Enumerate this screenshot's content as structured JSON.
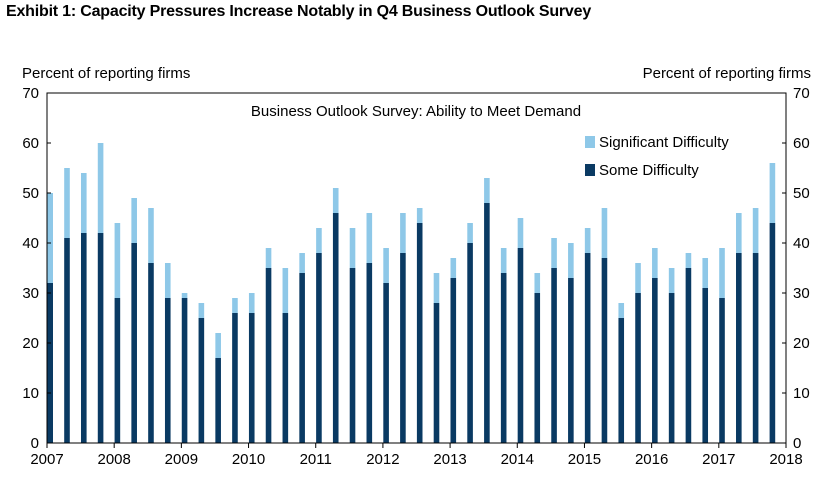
{
  "exhibit_title": "Exhibit 1: Capacity Pressures Increase Notably in Q4 Business Outlook Survey",
  "chart_data": {
    "type": "bar",
    "stacked": true,
    "title": "Business Outlook Survey: Ability to Meet Demand",
    "ylabel_left": "Percent of reporting firms",
    "ylabel_right": "Percent of reporting firms",
    "ylim": [
      0,
      70
    ],
    "yticks": [
      0,
      10,
      20,
      30,
      40,
      50,
      60,
      70
    ],
    "xlim": [
      2007,
      2018
    ],
    "xticks": [
      "2007",
      "2008",
      "2009",
      "2010",
      "2011",
      "2012",
      "2013",
      "2014",
      "2015",
      "2016",
      "2017",
      "2018"
    ],
    "quarters_per_year": 4,
    "legend": "top-right",
    "colors": {
      "some": "#0a3a63",
      "significant": "#8ec8e8"
    },
    "series": [
      {
        "name": "Some Difficulty",
        "key": "some",
        "values": [
          32,
          41,
          42,
          42,
          29,
          40,
          36,
          29,
          29,
          25,
          17,
          26,
          26,
          35,
          26,
          34,
          38,
          46,
          35,
          36,
          32,
          38,
          44,
          28,
          33,
          40,
          48,
          34,
          39,
          30,
          35,
          33,
          38,
          37,
          25,
          30,
          33,
          30,
          35,
          31,
          29,
          38,
          38,
          44
        ]
      },
      {
        "name": "Significant Difficulty",
        "key": "significant",
        "values": [
          18,
          14,
          12,
          18,
          15,
          9,
          11,
          7,
          1,
          3,
          5,
          3,
          4,
          4,
          9,
          4,
          5,
          5,
          8,
          10,
          7,
          8,
          3,
          6,
          4,
          4,
          5,
          5,
          6,
          4,
          6,
          7,
          5,
          10,
          3,
          6,
          6,
          5,
          3,
          6,
          10,
          8,
          9,
          12
        ]
      }
    ]
  }
}
